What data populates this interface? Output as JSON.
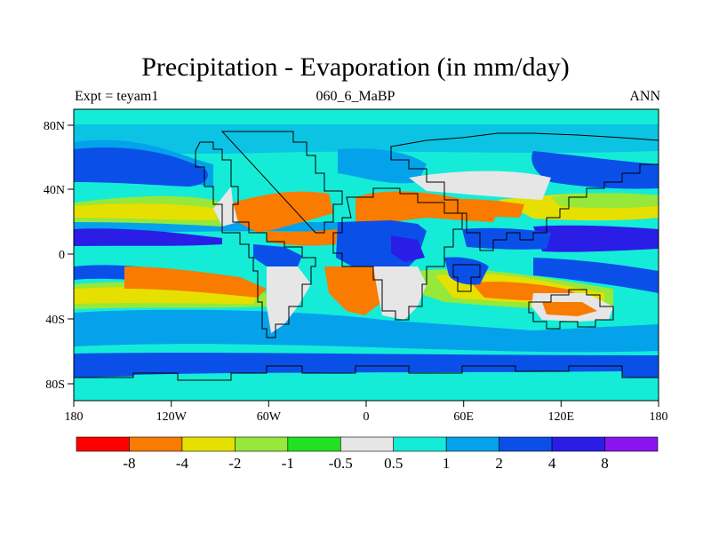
{
  "title": "Precipitation - Evaporation (in mm/day)",
  "subtitle_left": "Expt = teyam1",
  "subtitle_center": "060_6_MaBP",
  "subtitle_right": "ANN",
  "axes": {
    "x_ticks": [
      "180",
      "120W",
      "60W",
      "0",
      "60E",
      "120E",
      "180"
    ],
    "y_ticks": [
      "80N",
      "40N",
      "0",
      "40S",
      "80S"
    ]
  },
  "colorbar": {
    "colors": [
      "#ff0000",
      "#f97b00",
      "#e6e000",
      "#96e83a",
      "#22e022",
      "#e6e6e6",
      "#14ecd8",
      "#05a2ec",
      "#0a50e8",
      "#2a1ee6",
      "#8a14ee"
    ],
    "labels": [
      "-8",
      "-4",
      "-2",
      "-1",
      "-0.5",
      "0.5",
      "1",
      "2",
      "4",
      "8"
    ]
  },
  "colors": {
    "ocean_base": "#00d2e0",
    "strong_positive": "#0a50e8",
    "moderate_positive": "#05a2ec",
    "very_strong_positive": "#2a1ee6",
    "negative_orange": "#f97b00",
    "negative_yellow": "#e6e000",
    "negative_green": "#96e83a",
    "neutral_grey": "#e6e6e6"
  }
}
